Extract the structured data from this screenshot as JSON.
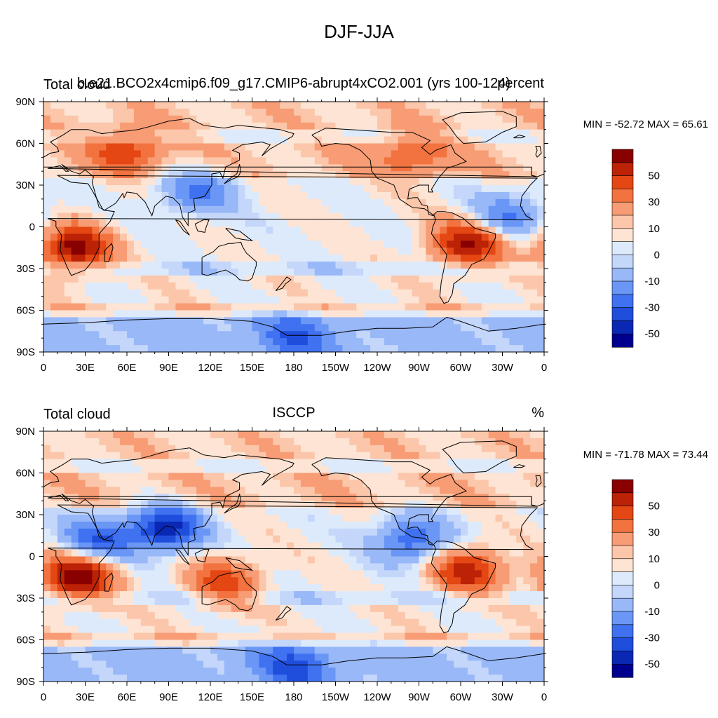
{
  "figure_title": "DJF-JJA",
  "chart_data": [
    {
      "type": "heatmap",
      "subtype": "cylindrical-equidistant filled-contour map",
      "title_left": "Total cloud",
      "title_center": "b.e21.BCO2x4cmip6.f09_g17.CMIP6-abrupt4xCO2.001 (yrs 100-124)",
      "title_right": "percent",
      "stats": "MIN = -52.72 MAX =  65.61",
      "min": -52.72,
      "max": 65.61,
      "ylim": [
        -90,
        90
      ],
      "xlim": [
        0,
        360
      ],
      "ylabels": [
        "90N",
        "60N",
        "30N",
        "0",
        "30S",
        "60S",
        "90S"
      ],
      "xlabels": [
        "0",
        "30E",
        "60E",
        "90E",
        "120E",
        "150E",
        "180",
        "150W",
        "120W",
        "90W",
        "60W",
        "30W",
        "0"
      ],
      "colorbar_labels": [
        "50",
        "30",
        "10",
        "0",
        "-10",
        "-30",
        "-50"
      ],
      "contour_levels": [
        -60,
        -50,
        -40,
        -30,
        -20,
        -10,
        -5,
        0,
        5,
        10,
        20,
        30,
        40,
        50,
        60
      ],
      "features": [
        {
          "name": "southern-africa-increase",
          "lon": 22,
          "lat": -15,
          "value": 55
        },
        {
          "name": "south-america-increase",
          "lon": 305,
          "lat": -12,
          "value": 50
        },
        {
          "name": "north-asia-increase",
          "lon": 60,
          "lat": 55,
          "value": 30
        },
        {
          "name": "north-america-increase",
          "lon": 265,
          "lat": 52,
          "value": 25
        },
        {
          "name": "east-asia-decrease",
          "lon": 110,
          "lat": 25,
          "value": -30
        },
        {
          "name": "equatorial-atlantic-decrease",
          "lon": 335,
          "lat": 8,
          "value": -30
        },
        {
          "name": "antarctic-decrease",
          "lon": 180,
          "lat": -80,
          "value": -25
        }
      ]
    },
    {
      "type": "heatmap",
      "subtype": "cylindrical-equidistant filled-contour map",
      "title_left": "Total cloud",
      "title_center": "ISCCP",
      "title_right": "%",
      "stats": "MIN = -71.78 MAX =  73.44",
      "min": -71.78,
      "max": 73.44,
      "ylim": [
        -90,
        90
      ],
      "xlim": [
        0,
        360
      ],
      "ylabels": [
        "90N",
        "60N",
        "30N",
        "0",
        "30S",
        "60S",
        "90S"
      ],
      "xlabels": [
        "0",
        "30E",
        "60E",
        "90E",
        "120E",
        "150E",
        "180",
        "150W",
        "120W",
        "90W",
        "60W",
        "30W",
        "0"
      ],
      "colorbar_labels": [
        "50",
        "30",
        "10",
        "0",
        "-10",
        "-30",
        "-50"
      ],
      "contour_levels": [
        -60,
        -50,
        -40,
        -30,
        -20,
        -10,
        -5,
        0,
        5,
        10,
        20,
        30,
        40,
        50,
        60
      ],
      "features": [
        {
          "name": "southern-africa-increase",
          "lon": 25,
          "lat": -14,
          "value": 60
        },
        {
          "name": "south-america-increase",
          "lon": 305,
          "lat": -10,
          "value": 45
        },
        {
          "name": "australia-increase",
          "lon": 130,
          "lat": -18,
          "value": 35
        },
        {
          "name": "south-asia-decrease",
          "lon": 88,
          "lat": 20,
          "value": -55
        },
        {
          "name": "arabian-sea-decrease",
          "lon": 40,
          "lat": 12,
          "value": -40
        },
        {
          "name": "central-america-decrease",
          "lon": 265,
          "lat": 12,
          "value": -40
        },
        {
          "name": "antarctic-decrease",
          "lon": 180,
          "lat": -80,
          "value": -30
        }
      ]
    }
  ],
  "colors": {
    "palette": [
      "#00008f",
      "#0a28b4",
      "#1f4ddc",
      "#3f71f0",
      "#6a96f6",
      "#99b8f8",
      "#c4d7fb",
      "#ddeafb",
      "#fde4d4",
      "#fbc6aa",
      "#f79c74",
      "#f2733f",
      "#e44713",
      "#bc2206",
      "#880000"
    ],
    "land_line": "#000000"
  }
}
